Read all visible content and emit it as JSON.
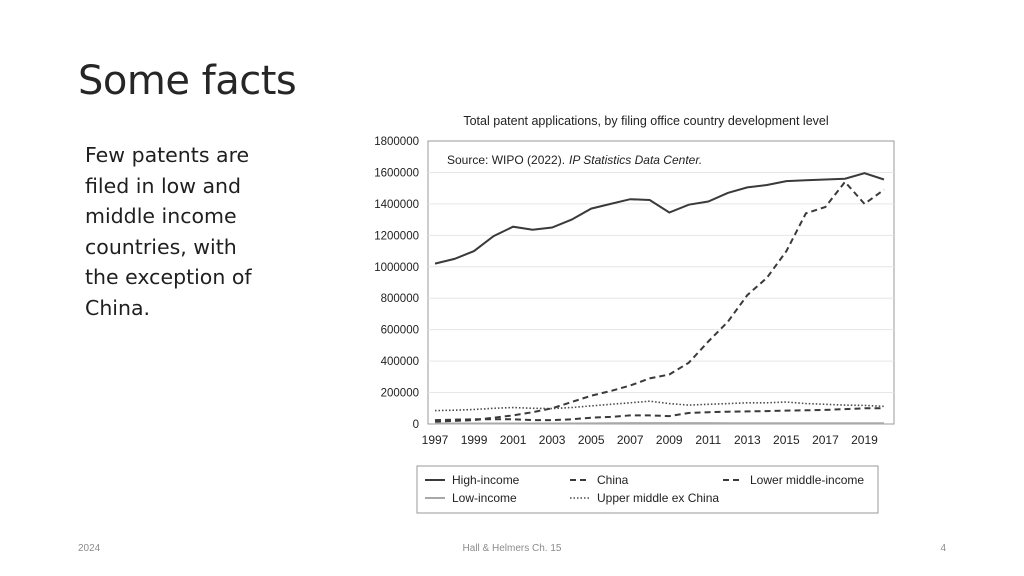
{
  "slide": {
    "title": "Some facts",
    "body": "Few patents are filed in low and middle income countries, with the exception of China."
  },
  "footer": {
    "date": "2024",
    "source": "Hall & Helmers Ch. 15",
    "page_number": "4"
  },
  "chart_data": {
    "type": "line",
    "title": "Total patent applications, by filing office country development level",
    "annotation_prefix": "Source: WIPO (2022).",
    "annotation_italic": "IP Statistics Data Center.",
    "xlabel": "",
    "ylabel": "",
    "x": [
      1997,
      1998,
      1999,
      2000,
      2001,
      2002,
      2003,
      2004,
      2005,
      2006,
      2007,
      2008,
      2009,
      2010,
      2011,
      2012,
      2013,
      2014,
      2015,
      2016,
      2017,
      2018,
      2019,
      2020
    ],
    "x_tick_labels": [
      "1997",
      "1999",
      "2001",
      "2003",
      "2005",
      "2007",
      "2009",
      "2011",
      "2013",
      "2015",
      "2017",
      "2019"
    ],
    "ylim": [
      0,
      1800000
    ],
    "y_tick_labels": [
      "0",
      "200000",
      "400000",
      "600000",
      "800000",
      "1000000",
      "1200000",
      "1400000",
      "1600000",
      "1800000"
    ],
    "grid": true,
    "legend_position": "bottom",
    "series": [
      {
        "name": "High-income",
        "style": "solid",
        "color": "#3a3a3a",
        "values": [
          1020000,
          1050000,
          1100000,
          1195000,
          1255000,
          1235000,
          1250000,
          1300000,
          1370000,
          1400000,
          1430000,
          1425000,
          1345000,
          1395000,
          1415000,
          1470000,
          1505000,
          1520000,
          1545000,
          1550000,
          1555000,
          1560000,
          1595000,
          1555000
        ]
      },
      {
        "name": "China",
        "style": "dashed",
        "color": "#3a3a3a",
        "values": [
          15000,
          20000,
          25000,
          40000,
          55000,
          75000,
          100000,
          140000,
          180000,
          210000,
          245000,
          290000,
          315000,
          390000,
          525000,
          650000,
          820000,
          930000,
          1100000,
          1340000,
          1380000,
          1540000,
          1400000,
          1490000
        ]
      },
      {
        "name": "Lower middle-income",
        "style": "dashed",
        "color": "#3a3a3a",
        "values": [
          25000,
          28000,
          30000,
          30000,
          30000,
          25000,
          25000,
          30000,
          40000,
          45000,
          55000,
          55000,
          50000,
          70000,
          75000,
          78000,
          80000,
          82000,
          85000,
          87000,
          90000,
          95000,
          100000,
          100000
        ]
      },
      {
        "name": "Low-income",
        "style": "solid",
        "color": "#a8a8a8",
        "values": [
          3000,
          3000,
          3000,
          3000,
          3000,
          3000,
          3000,
          3000,
          4000,
          5000,
          6000,
          6000,
          6000,
          6000,
          6000,
          5000,
          5000,
          5000,
          5000,
          5000,
          5000,
          5000,
          5000,
          5000
        ]
      },
      {
        "name": "Upper middle ex China",
        "style": "dotted",
        "color": "#4a4a4a",
        "values": [
          85000,
          88000,
          92000,
          100000,
          105000,
          100000,
          98000,
          105000,
          115000,
          125000,
          135000,
          145000,
          130000,
          120000,
          125000,
          130000,
          135000,
          135000,
          140000,
          130000,
          125000,
          120000,
          118000,
          112000
        ]
      }
    ]
  }
}
